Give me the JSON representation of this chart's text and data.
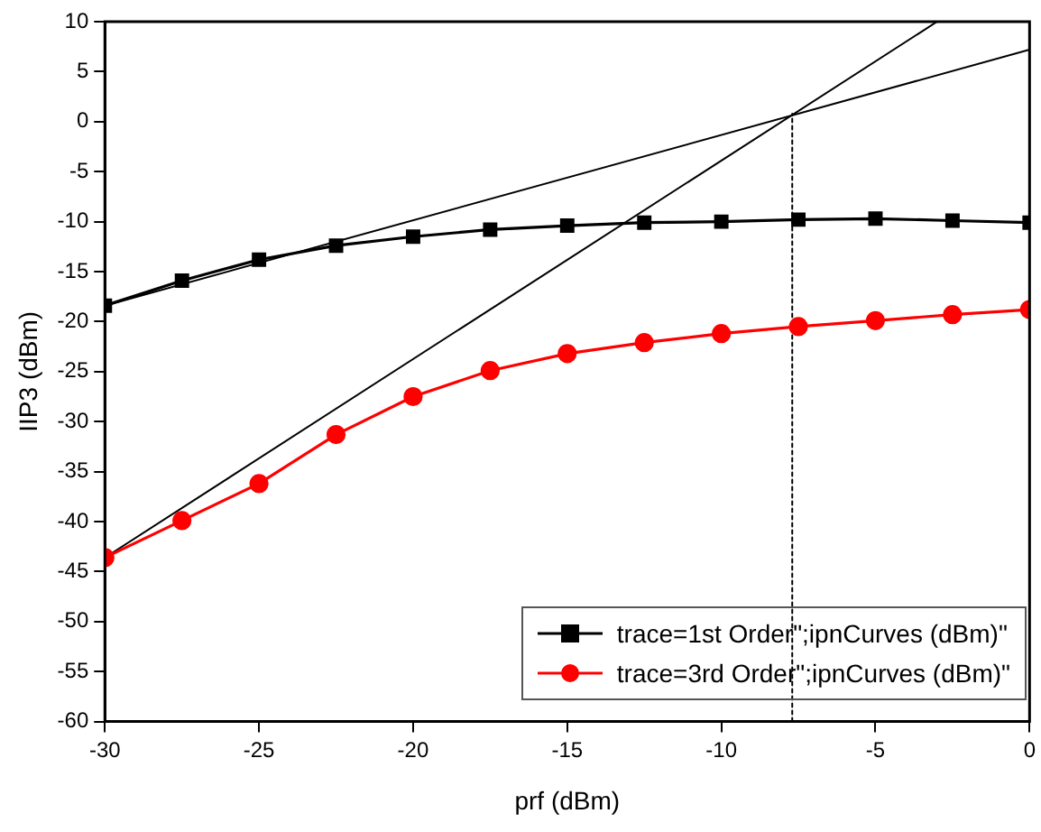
{
  "chart_data": {
    "type": "line",
    "xlabel": "prf (dBm)",
    "ylabel": "IIP3 (dBm)",
    "xlim": [
      -30,
      0
    ],
    "ylim": [
      -60,
      10
    ],
    "xticks": [
      -30,
      -25,
      -20,
      -15,
      -10,
      -5,
      0
    ],
    "yticks": [
      -60,
      -55,
      -50,
      -45,
      -40,
      -35,
      -30,
      -25,
      -20,
      -15,
      -10,
      -5,
      0,
      5,
      10
    ],
    "grid": false,
    "legend": "bottom right",
    "x": [
      -30,
      -27.5,
      -25,
      -22.5,
      -20,
      -17.5,
      -15,
      -12.5,
      -10,
      -7.5,
      -5,
      -2.5,
      0
    ],
    "series": [
      {
        "name": "trace=1st Order\";ipnCurves (dBm)\"",
        "color": "#000000",
        "marker": "square",
        "values": [
          -18.4,
          -15.9,
          -13.8,
          -12.4,
          -11.5,
          -10.8,
          -10.4,
          -10.1,
          -10.0,
          -9.8,
          -9.7,
          -9.9,
          -10.1
        ]
      },
      {
        "name": "trace=3rd Order\";ipnCurves (dBm)\"",
        "color": "#ff0000",
        "marker": "circle",
        "values": [
          -43.6,
          -39.9,
          -36.2,
          -31.3,
          -27.5,
          -24.9,
          -23.2,
          -22.1,
          -21.2,
          -20.5,
          -19.9,
          -19.3,
          -18.8
        ]
      },
      {
        "type": "line",
        "color": "#000000",
        "marker": "none",
        "x": [
          -30,
          0
        ],
        "values": [
          -18.4,
          7.2
        ]
      },
      {
        "type": "line",
        "color": "#000000",
        "marker": "none",
        "x": [
          -30,
          -3
        ],
        "values": [
          -43.6,
          10
        ]
      },
      {
        "type": "line",
        "color": "#000000",
        "marker": "none",
        "line_style": "dotted",
        "x": [
          -7.7,
          -7.7
        ],
        "values": [
          -60,
          0.8
        ]
      }
    ]
  }
}
